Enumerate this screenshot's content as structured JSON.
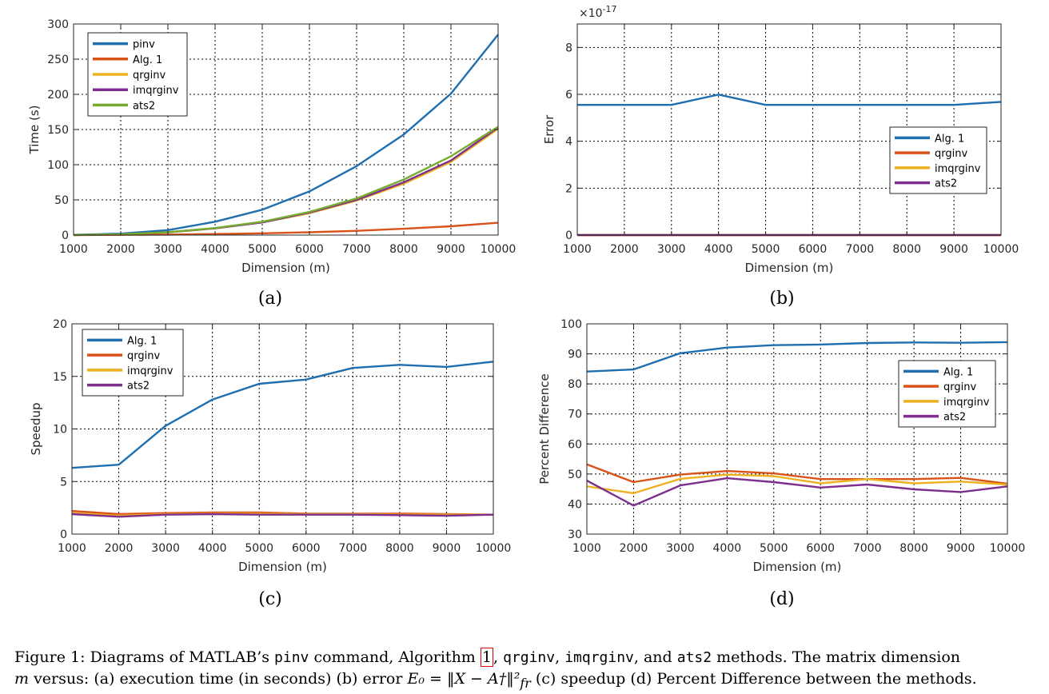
{
  "colors": {
    "blue": "#1f6fb0",
    "orange": "#d95319",
    "yellow": "#edb120",
    "purple": "#7e2f8e",
    "green": "#77ac30",
    "axis": "#262626",
    "grid": "#000000",
    "ref_box": "#e00000"
  },
  "chart_data": [
    {
      "type": "line",
      "panel_label": "(a)",
      "xlabel": "Dimension (m)",
      "ylabel": "Time (s)",
      "x": [
        1000,
        2000,
        3000,
        4000,
        5000,
        6000,
        7000,
        8000,
        9000,
        10000
      ],
      "xlim": [
        1000,
        10000
      ],
      "ylim": [
        0,
        300
      ],
      "xticks": [
        "1000",
        "2000",
        "3000",
        "4000",
        "5000",
        "6000",
        "7000",
        "8000",
        "9000",
        "10000"
      ],
      "yticks": [
        "0",
        "50",
        "100",
        "150",
        "200",
        "250",
        "300"
      ],
      "grid": true,
      "legend_position": "top-left",
      "series": [
        {
          "name": "pinv",
          "color": "#1f6fb0",
          "values": [
            0.3,
            2,
            7,
            19,
            36,
            62,
            98,
            143,
            201,
            285
          ]
        },
        {
          "name": "Alg. 1",
          "color": "#d95319",
          "values": [
            0.05,
            0.3,
            0.7,
            1.5,
            2.5,
            4,
            6,
            9,
            12.5,
            17.5
          ]
        },
        {
          "name": "qrginv",
          "color": "#edb120",
          "values": [
            0.1,
            1,
            4,
            9.5,
            18,
            31,
            49,
            73,
            104,
            151
          ]
        },
        {
          "name": "imqrginv",
          "color": "#7e2f8e",
          "values": [
            0.1,
            1,
            4,
            9.5,
            18,
            32,
            50,
            75,
            106,
            153
          ]
        },
        {
          "name": "ats2",
          "color": "#77ac30",
          "values": [
            0.1,
            1,
            4,
            10,
            19,
            33,
            52,
            79,
            112,
            154
          ]
        }
      ]
    },
    {
      "type": "line",
      "panel_label": "(b)",
      "xlabel": "Dimension (m)",
      "ylabel": "Error",
      "exponent_label": "×10",
      "exponent_power": "-17",
      "x": [
        1000,
        2000,
        3000,
        4000,
        5000,
        6000,
        7000,
        8000,
        9000,
        10000
      ],
      "xlim": [
        1000,
        10000
      ],
      "ylim": [
        0,
        9
      ],
      "xticks": [
        "1000",
        "2000",
        "3000",
        "4000",
        "5000",
        "6000",
        "7000",
        "8000",
        "9000",
        "10000"
      ],
      "yticks": [
        "0",
        "2",
        "4",
        "6",
        "8"
      ],
      "grid": true,
      "legend_position": "right",
      "series": [
        {
          "name": "Alg. 1",
          "color": "#1f6fb0",
          "values": [
            5.55,
            5.55,
            5.55,
            5.99,
            5.55,
            5.55,
            5.55,
            5.55,
            5.55,
            5.68
          ]
        },
        {
          "name": "qrginv",
          "color": "#d95319",
          "values": [
            0,
            0,
            0,
            0,
            0,
            0,
            0,
            0,
            0,
            0
          ]
        },
        {
          "name": "imqrginv",
          "color": "#edb120",
          "values": [
            0,
            0,
            0,
            0,
            0,
            0,
            0,
            0,
            0,
            0
          ]
        },
        {
          "name": "ats2",
          "color": "#7e2f8e",
          "values": [
            0,
            0,
            0,
            0,
            0,
            0,
            0,
            0,
            0,
            0
          ]
        }
      ]
    },
    {
      "type": "line",
      "panel_label": "(c)",
      "xlabel": "Dimension (m)",
      "ylabel": "Speedup",
      "x": [
        1000,
        2000,
        3000,
        4000,
        5000,
        6000,
        7000,
        8000,
        9000,
        10000
      ],
      "xlim": [
        1000,
        10000
      ],
      "ylim": [
        0,
        20
      ],
      "xticks": [
        "1000",
        "2000",
        "3000",
        "4000",
        "5000",
        "6000",
        "7000",
        "8000",
        "9000",
        "10000"
      ],
      "yticks": [
        "0",
        "5",
        "10",
        "15",
        "20"
      ],
      "grid": true,
      "legend_position": "top-left",
      "series": [
        {
          "name": "Alg. 1",
          "color": "#1f6fb0",
          "values": [
            6.3,
            6.6,
            10.3,
            12.8,
            14.3,
            14.7,
            15.8,
            16.1,
            15.9,
            16.4
          ]
        },
        {
          "name": "qrginv",
          "color": "#d95319",
          "values": [
            2.2,
            1.9,
            2.0,
            2.05,
            2.05,
            1.95,
            1.95,
            1.95,
            1.9,
            1.85
          ]
        },
        {
          "name": "imqrginv",
          "color": "#edb120",
          "values": [
            2.0,
            1.75,
            1.9,
            1.95,
            1.95,
            1.9,
            1.9,
            1.85,
            1.85,
            1.85
          ]
        },
        {
          "name": "ats2",
          "color": "#7e2f8e",
          "values": [
            1.9,
            1.65,
            1.85,
            1.9,
            1.85,
            1.85,
            1.85,
            1.8,
            1.75,
            1.85
          ]
        }
      ]
    },
    {
      "type": "line",
      "panel_label": "(d)",
      "xlabel": "Dimension (m)",
      "ylabel": "Percent Difference",
      "x": [
        1000,
        2000,
        3000,
        4000,
        5000,
        6000,
        7000,
        8000,
        9000,
        10000
      ],
      "xlim": [
        1000,
        10000
      ],
      "ylim": [
        30,
        100
      ],
      "xticks": [
        "1000",
        "2000",
        "3000",
        "4000",
        "5000",
        "6000",
        "7000",
        "8000",
        "9000",
        "10000"
      ],
      "yticks": [
        "30",
        "40",
        "50",
        "60",
        "70",
        "80",
        "90",
        "100"
      ],
      "grid": true,
      "legend_position": "right",
      "series": [
        {
          "name": "Alg. 1",
          "color": "#1f6fb0",
          "values": [
            84.1,
            84.8,
            90.2,
            92.1,
            92.9,
            93.1,
            93.6,
            93.8,
            93.7,
            93.9
          ]
        },
        {
          "name": "qrginv",
          "color": "#d95319",
          "values": [
            53.2,
            47.3,
            49.8,
            51.0,
            50.2,
            48.3,
            48.3,
            48.3,
            48.7,
            46.8
          ]
        },
        {
          "name": "imqrginv",
          "color": "#edb120",
          "values": [
            45.9,
            43.6,
            48.4,
            49.8,
            49.3,
            46.9,
            48.3,
            46.9,
            47.5,
            46.5
          ]
        },
        {
          "name": "ats2",
          "color": "#7e2f8e",
          "values": [
            47.8,
            39.5,
            46.2,
            48.6,
            47.3,
            45.5,
            46.5,
            44.9,
            44.0,
            45.9
          ]
        }
      ]
    }
  ],
  "caption": {
    "figure_label": "Figure 1:",
    "line1_a": "Diagrams of MATLAB’s",
    "cmd_pinv": "pinv",
    "line1_b": "command, Algorithm",
    "ref_number": "1",
    "cmd_qrginv": "qrginv",
    "cmd_imqrginv": "imqrginv",
    "line1_c": ", and",
    "cmd_ats2": "ats2",
    "line1_d": "methods. The matrix dimension",
    "var_m": "m",
    "line2_a": "versus: (a) execution time (in seconds) (b) error",
    "error_formula": "E₀ = ‖X − A†‖²",
    "formula_subscript": "fr",
    "line2_b": "(c) speedup (d) Percent Difference between the methods."
  }
}
